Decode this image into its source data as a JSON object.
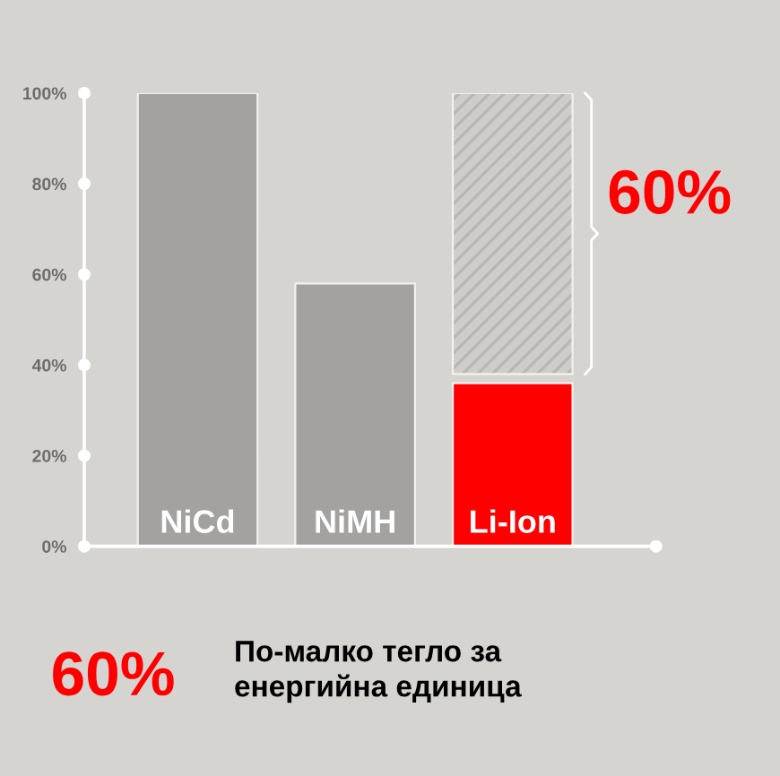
{
  "chart_data": {
    "type": "bar",
    "categories": [
      "NiCd",
      "NiMH",
      "Li-Ion"
    ],
    "series": [
      {
        "colors": [
          "#a3a2a0",
          "#a3a2a0",
          "#ff0000"
        ],
        "values": [
          100,
          58,
          36
        ]
      },
      {
        "color": "#cfcdca",
        "values": [
          null,
          null,
          62
        ],
        "base": [
          null,
          null,
          38
        ]
      }
    ],
    "ylim": [
      0,
      100
    ],
    "yticks": [
      {
        "value": 0,
        "label": "0%"
      },
      {
        "value": 20,
        "label": "20%"
      },
      {
        "value": 40,
        "label": "40%"
      },
      {
        "value": 60,
        "label": "60%"
      },
      {
        "value": 80,
        "label": "80%"
      },
      {
        "value": 100,
        "label": "100%"
      }
    ],
    "grid": false,
    "annotations": [
      "60%",
      "60%",
      "По-малко тегло за\nенергийна единица"
    ]
  }
}
